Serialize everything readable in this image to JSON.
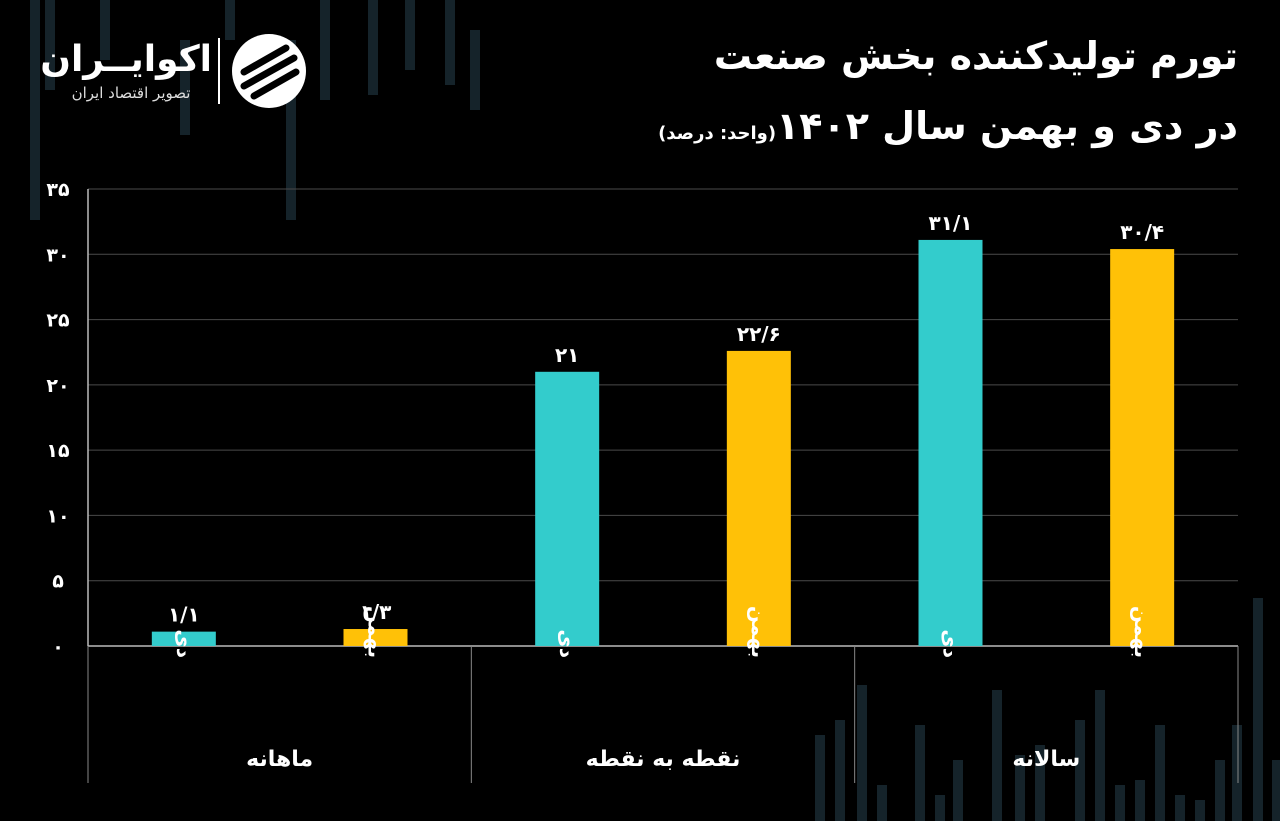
{
  "title": {
    "line1": "تورم تولیدکننده بخش صنعت",
    "line2": "در دی و بهمن سال ۱۴۰۲",
    "unit": "(واحد: درصد)"
  },
  "logo": {
    "name": "اکوایــران",
    "tagline": "تصویر اقتصاد ایران"
  },
  "colors": {
    "background": "#000000",
    "series_dey": "#33cccc",
    "series_bahman": "#ffc107",
    "grid": "#4a4a4a",
    "text": "#ffffff"
  },
  "chart_data": {
    "type": "bar",
    "groups": [
      {
        "label": "ماهانه",
        "bars": [
          {
            "category": "دی",
            "value": 1.1,
            "label": "۱/۱",
            "series": "dey"
          },
          {
            "category": "بهمن",
            "value": 1.3,
            "label": "۱/۳",
            "series": "bahman"
          }
        ]
      },
      {
        "label": "نقطه به نقطه",
        "bars": [
          {
            "category": "دی",
            "value": 21,
            "label": "۲۱",
            "series": "dey"
          },
          {
            "category": "بهمن",
            "value": 22.6,
            "label": "۲۲/۶",
            "series": "bahman"
          }
        ]
      },
      {
        "label": "سالانه",
        "bars": [
          {
            "category": "دی",
            "value": 31.1,
            "label": "۳۱/۱",
            "series": "dey"
          },
          {
            "category": "بهمن",
            "value": 30.4,
            "label": "۳۰/۴",
            "series": "bahman"
          }
        ]
      }
    ],
    "ylim": [
      0,
      35
    ],
    "yticks": [
      0,
      5,
      10,
      15,
      20,
      25,
      30,
      35
    ],
    "ytick_labels": [
      "۰",
      "۵",
      "۱۰",
      "۱۵",
      "۲۰",
      "۲۵",
      "۳۰",
      "۳۵"
    ],
    "grid": true,
    "xlabel": "",
    "ylabel": ""
  }
}
